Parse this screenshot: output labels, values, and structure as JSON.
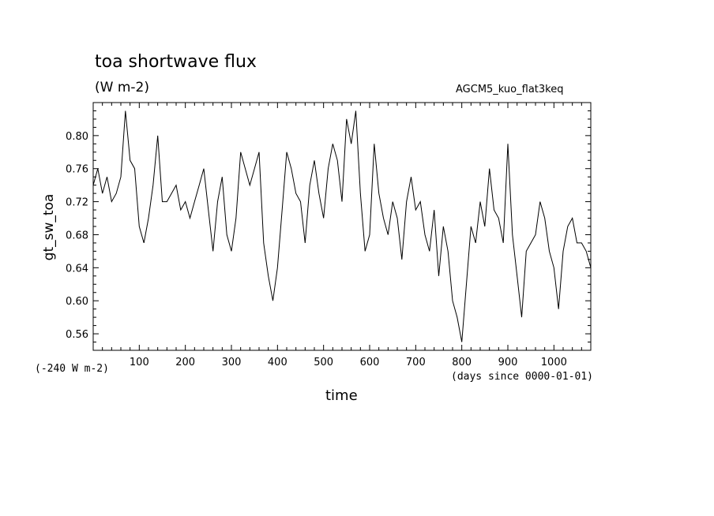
{
  "header": {
    "title": "toa shortwave flux",
    "units": "(W m-2)",
    "run_name": "AGCM5_kuo_flat3keq",
    "offset_note": "(-240 W m-2)",
    "x_units_note": "(days since 0000-01-01)"
  },
  "chart_data": {
    "type": "line",
    "title": "toa shortwave flux",
    "xlabel": "time",
    "ylabel": "gt_sw_toa",
    "xlim": [
      0,
      1080
    ],
    "ylim": [
      0.54,
      0.84
    ],
    "x_ticks": [
      100,
      200,
      300,
      400,
      500,
      600,
      700,
      800,
      900,
      1000
    ],
    "x_tick_labels": [
      "100",
      "200",
      "300",
      "400",
      "500",
      "600",
      "700",
      "800",
      "900",
      "1000"
    ],
    "y_ticks": [
      0.56,
      0.6,
      0.64,
      0.68,
      0.72,
      0.76,
      0.8
    ],
    "y_tick_labels": [
      "0.56",
      "0.60",
      "0.64",
      "0.68",
      "0.72",
      "0.76",
      "0.80"
    ],
    "grid": false,
    "line_color": "#000000",
    "series": [
      {
        "x": [
          0,
          10,
          20,
          30,
          40,
          50,
          60,
          70,
          80,
          90,
          100,
          110,
          120,
          130,
          140,
          150,
          160,
          170,
          180,
          190,
          200,
          210,
          220,
          230,
          240,
          250,
          260,
          270,
          280,
          290,
          300,
          310,
          320,
          330,
          340,
          350,
          360,
          370,
          380,
          390,
          400,
          410,
          420,
          430,
          440,
          450,
          460,
          470,
          480,
          490,
          500,
          510,
          520,
          530,
          540,
          550,
          560,
          570,
          580,
          590,
          600,
          610,
          620,
          630,
          640,
          650,
          660,
          670,
          680,
          690,
          700,
          710,
          720,
          730,
          740,
          750,
          760,
          770,
          780,
          790,
          800,
          810,
          820,
          830,
          840,
          850,
          860,
          870,
          880,
          890,
          900,
          910,
          920,
          930,
          940,
          950,
          960,
          970,
          980,
          990,
          1000,
          1010,
          1020,
          1030,
          1040,
          1050,
          1060,
          1070,
          1080
        ],
        "y": [
          0.74,
          0.76,
          0.73,
          0.75,
          0.72,
          0.73,
          0.75,
          0.83,
          0.77,
          0.76,
          0.69,
          0.67,
          0.7,
          0.74,
          0.8,
          0.72,
          0.72,
          0.73,
          0.74,
          0.71,
          0.72,
          0.7,
          0.72,
          0.74,
          0.76,
          0.71,
          0.66,
          0.72,
          0.75,
          0.68,
          0.66,
          0.7,
          0.78,
          0.76,
          0.74,
          0.76,
          0.78,
          0.67,
          0.63,
          0.6,
          0.64,
          0.71,
          0.78,
          0.76,
          0.73,
          0.72,
          0.67,
          0.74,
          0.77,
          0.73,
          0.7,
          0.76,
          0.79,
          0.77,
          0.72,
          0.82,
          0.79,
          0.83,
          0.73,
          0.66,
          0.68,
          0.79,
          0.73,
          0.7,
          0.68,
          0.72,
          0.7,
          0.65,
          0.72,
          0.75,
          0.71,
          0.72,
          0.68,
          0.66,
          0.71,
          0.63,
          0.69,
          0.66,
          0.6,
          0.58,
          0.55,
          0.62,
          0.69,
          0.67,
          0.72,
          0.69,
          0.76,
          0.71,
          0.7,
          0.67,
          0.79,
          0.68,
          0.63,
          0.58,
          0.66,
          0.67,
          0.68,
          0.72,
          0.7,
          0.66,
          0.64,
          0.59,
          0.66,
          0.69,
          0.7,
          0.67,
          0.67,
          0.66,
          0.64
        ]
      }
    ]
  }
}
